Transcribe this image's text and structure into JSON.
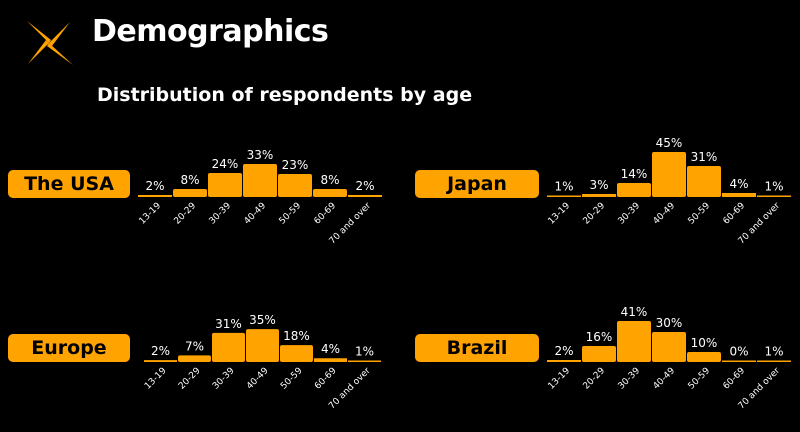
{
  "header": {
    "title": "Demographics",
    "subtitle": "Distribution of respondents by age",
    "logo_icon": "x-spark-icon"
  },
  "colors": {
    "accent": "#FFA300",
    "background": "#000000",
    "text": "#FFFFFF"
  },
  "chart_data": [
    {
      "type": "bar",
      "label": "The USA",
      "categories": [
        "13-19",
        "20-29",
        "30-39",
        "40-49",
        "50-59",
        "60-69",
        "70 and over"
      ],
      "values": [
        2,
        8,
        24,
        33,
        23,
        8,
        2
      ],
      "value_suffix": "%",
      "ylim": [
        0,
        45
      ]
    },
    {
      "type": "bar",
      "label": "Japan",
      "categories": [
        "13-19",
        "20-29",
        "30-39",
        "40-49",
        "50-59",
        "60-69",
        "70 and over"
      ],
      "values": [
        1,
        3,
        14,
        45,
        31,
        4,
        1
      ],
      "value_suffix": "%",
      "ylim": [
        0,
        45
      ]
    },
    {
      "type": "bar",
      "label": "Europe",
      "categories": [
        "13-19",
        "20-29",
        "30-39",
        "40-49",
        "50-59",
        "60-69",
        "70 and over"
      ],
      "values": [
        2,
        7,
        31,
        35,
        18,
        4,
        1
      ],
      "value_suffix": "%",
      "ylim": [
        0,
        45
      ]
    },
    {
      "type": "bar",
      "label": "Brazil",
      "categories": [
        "13-19",
        "20-29",
        "30-39",
        "40-49",
        "50-59",
        "60-69",
        "70 and over"
      ],
      "values": [
        2,
        16,
        41,
        30,
        10,
        0,
        1
      ],
      "value_suffix": "%",
      "ylim": [
        0,
        45
      ]
    }
  ]
}
